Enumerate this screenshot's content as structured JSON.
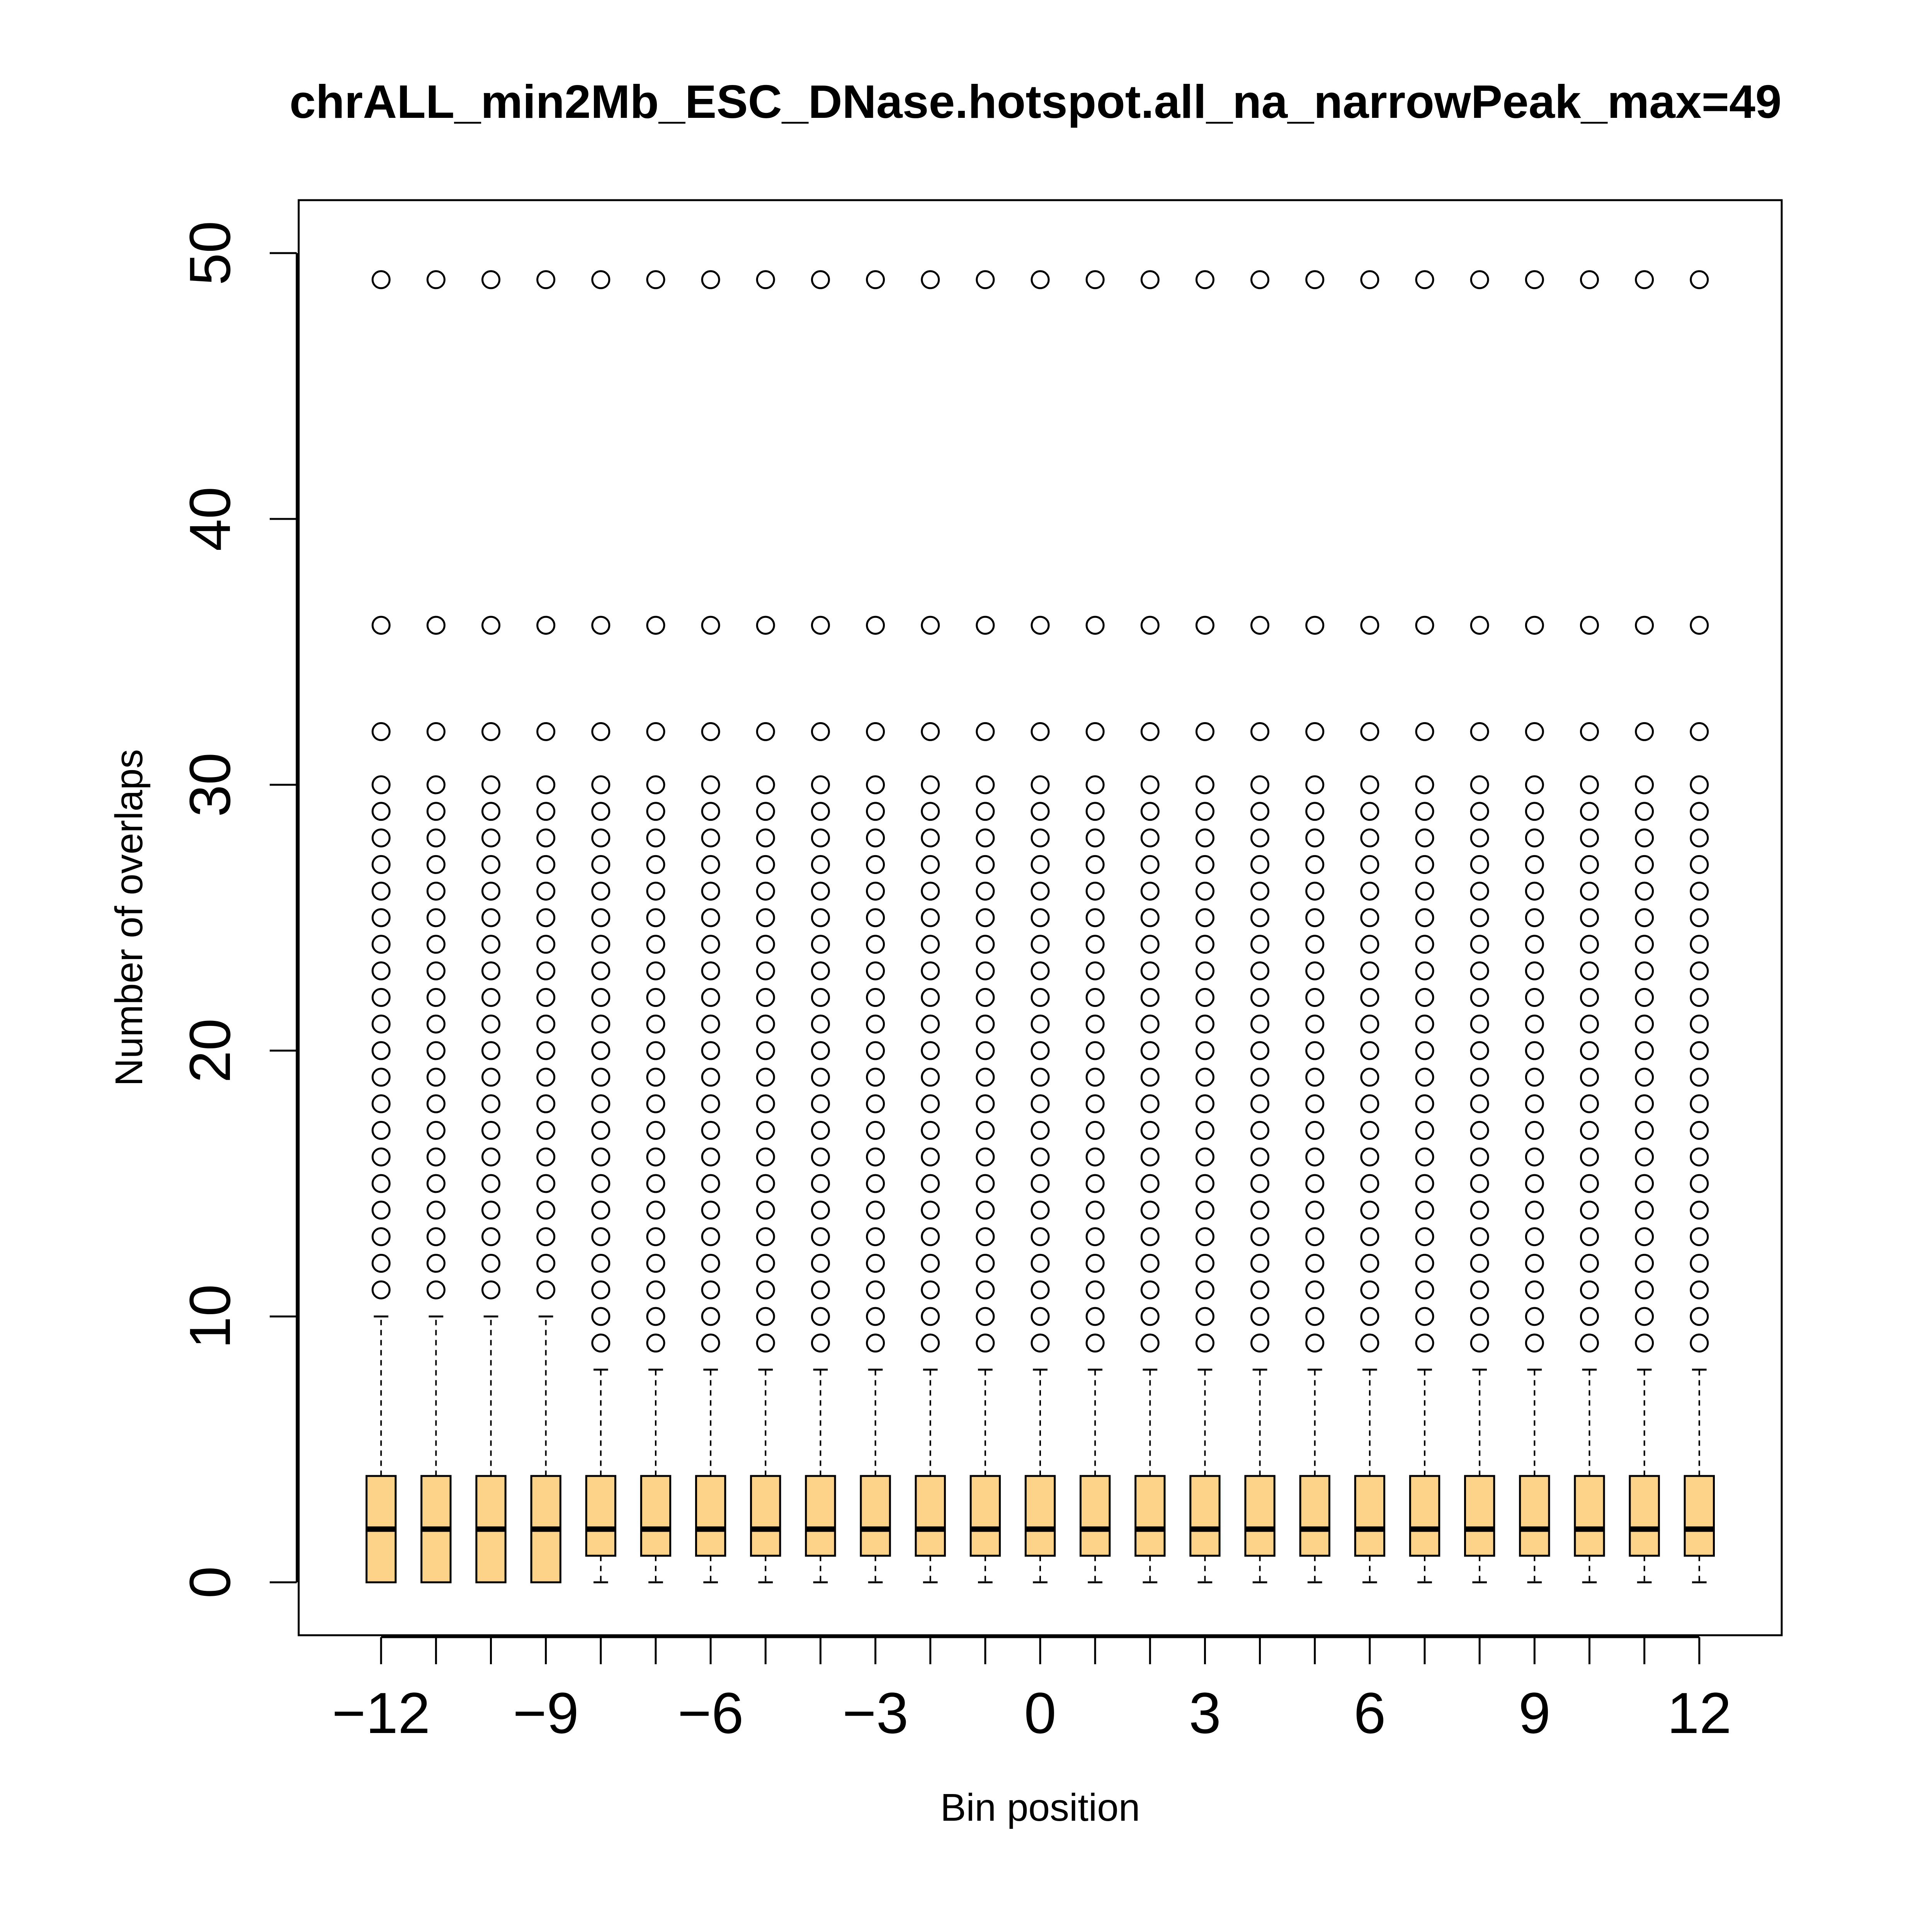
{
  "chart_data": {
    "type": "boxplot",
    "title": "chrALL_min2Mb_ESC_DNase.hotspot.all_na_narrowPeak_max=49",
    "xlabel": "Bin position",
    "ylabel": "Number of overlaps",
    "ylim": [
      0,
      50
    ],
    "y_ticks": [
      "0",
      "10",
      "20",
      "30",
      "40",
      "50"
    ],
    "x_ticks": [
      "−12",
      "−9",
      "−6",
      "−3",
      "0",
      "3",
      "6",
      "9",
      "12"
    ],
    "x_tick_positions": [
      -12,
      -9,
      -6,
      -3,
      0,
      3,
      6,
      9,
      12
    ],
    "x_range": [
      -13.5,
      13.5
    ],
    "box_fill": "#FDD38A",
    "positions": [
      -12,
      -11,
      -10,
      -9,
      -8,
      -7,
      -6,
      -5,
      -4,
      -3,
      -2,
      -1,
      0,
      1,
      2,
      3,
      4,
      5,
      6,
      7,
      8,
      9,
      10,
      11,
      12
    ],
    "groups": [
      {
        "min": 0,
        "q1": 0,
        "median": 2,
        "q3": 4,
        "max": 10,
        "outliers": [
          11,
          12,
          13,
          14,
          15,
          16,
          17,
          18,
          19,
          20,
          21,
          22,
          23,
          24,
          25,
          26,
          27,
          28,
          29,
          30,
          32,
          36,
          49
        ]
      },
      {
        "min": 0,
        "q1": 0,
        "median": 2,
        "q3": 4,
        "max": 10,
        "outliers": [
          11,
          12,
          13,
          14,
          15,
          16,
          17,
          18,
          19,
          20,
          21,
          22,
          23,
          24,
          25,
          26,
          27,
          28,
          29,
          30,
          32,
          36,
          49
        ]
      },
      {
        "min": 0,
        "q1": 0,
        "median": 2,
        "q3": 4,
        "max": 10,
        "outliers": [
          11,
          12,
          13,
          14,
          15,
          16,
          17,
          18,
          19,
          20,
          21,
          22,
          23,
          24,
          25,
          26,
          27,
          28,
          29,
          30,
          32,
          36,
          49
        ]
      },
      {
        "min": 0,
        "q1": 0,
        "median": 2,
        "q3": 4,
        "max": 10,
        "outliers": [
          11,
          12,
          13,
          14,
          15,
          16,
          17,
          18,
          19,
          20,
          21,
          22,
          23,
          24,
          25,
          26,
          27,
          28,
          29,
          30,
          32,
          36,
          49
        ]
      },
      {
        "min": 0,
        "q1": 1,
        "median": 2,
        "q3": 4,
        "max": 8,
        "outliers": [
          9,
          10,
          11,
          12,
          13,
          14,
          15,
          16,
          17,
          18,
          19,
          20,
          21,
          22,
          23,
          24,
          25,
          26,
          27,
          28,
          29,
          30,
          32,
          36,
          49
        ]
      },
      {
        "min": 0,
        "q1": 1,
        "median": 2,
        "q3": 4,
        "max": 8,
        "outliers": [
          9,
          10,
          11,
          12,
          13,
          14,
          15,
          16,
          17,
          18,
          19,
          20,
          21,
          22,
          23,
          24,
          25,
          26,
          27,
          28,
          29,
          30,
          32,
          36,
          49
        ]
      },
      {
        "min": 0,
        "q1": 1,
        "median": 2,
        "q3": 4,
        "max": 8,
        "outliers": [
          9,
          10,
          11,
          12,
          13,
          14,
          15,
          16,
          17,
          18,
          19,
          20,
          21,
          22,
          23,
          24,
          25,
          26,
          27,
          28,
          29,
          30,
          32,
          36,
          49
        ]
      },
      {
        "min": 0,
        "q1": 1,
        "median": 2,
        "q3": 4,
        "max": 8,
        "outliers": [
          9,
          10,
          11,
          12,
          13,
          14,
          15,
          16,
          17,
          18,
          19,
          20,
          21,
          22,
          23,
          24,
          25,
          26,
          27,
          28,
          29,
          30,
          32,
          36,
          49
        ]
      },
      {
        "min": 0,
        "q1": 1,
        "median": 2,
        "q3": 4,
        "max": 8,
        "outliers": [
          9,
          10,
          11,
          12,
          13,
          14,
          15,
          16,
          17,
          18,
          19,
          20,
          21,
          22,
          23,
          24,
          25,
          26,
          27,
          28,
          29,
          30,
          32,
          36,
          49
        ]
      },
      {
        "min": 0,
        "q1": 1,
        "median": 2,
        "q3": 4,
        "max": 8,
        "outliers": [
          9,
          10,
          11,
          12,
          13,
          14,
          15,
          16,
          17,
          18,
          19,
          20,
          21,
          22,
          23,
          24,
          25,
          26,
          27,
          28,
          29,
          30,
          32,
          36,
          49
        ]
      },
      {
        "min": 0,
        "q1": 1,
        "median": 2,
        "q3": 4,
        "max": 8,
        "outliers": [
          9,
          10,
          11,
          12,
          13,
          14,
          15,
          16,
          17,
          18,
          19,
          20,
          21,
          22,
          23,
          24,
          25,
          26,
          27,
          28,
          29,
          30,
          32,
          36,
          49
        ]
      },
      {
        "min": 0,
        "q1": 1,
        "median": 2,
        "q3": 4,
        "max": 8,
        "outliers": [
          9,
          10,
          11,
          12,
          13,
          14,
          15,
          16,
          17,
          18,
          19,
          20,
          21,
          22,
          23,
          24,
          25,
          26,
          27,
          28,
          29,
          30,
          32,
          36,
          49
        ]
      },
      {
        "min": 0,
        "q1": 1,
        "median": 2,
        "q3": 4,
        "max": 8,
        "outliers": [
          9,
          10,
          11,
          12,
          13,
          14,
          15,
          16,
          17,
          18,
          19,
          20,
          21,
          22,
          23,
          24,
          25,
          26,
          27,
          28,
          29,
          30,
          32,
          36,
          49
        ]
      },
      {
        "min": 0,
        "q1": 1,
        "median": 2,
        "q3": 4,
        "max": 8,
        "outliers": [
          9,
          10,
          11,
          12,
          13,
          14,
          15,
          16,
          17,
          18,
          19,
          20,
          21,
          22,
          23,
          24,
          25,
          26,
          27,
          28,
          29,
          30,
          32,
          36,
          49
        ]
      },
      {
        "min": 0,
        "q1": 1,
        "median": 2,
        "q3": 4,
        "max": 8,
        "outliers": [
          9,
          10,
          11,
          12,
          13,
          14,
          15,
          16,
          17,
          18,
          19,
          20,
          21,
          22,
          23,
          24,
          25,
          26,
          27,
          28,
          29,
          30,
          32,
          36,
          49
        ]
      },
      {
        "min": 0,
        "q1": 1,
        "median": 2,
        "q3": 4,
        "max": 8,
        "outliers": [
          9,
          10,
          11,
          12,
          13,
          14,
          15,
          16,
          17,
          18,
          19,
          20,
          21,
          22,
          23,
          24,
          25,
          26,
          27,
          28,
          29,
          30,
          32,
          36,
          49
        ]
      },
      {
        "min": 0,
        "q1": 1,
        "median": 2,
        "q3": 4,
        "max": 8,
        "outliers": [
          9,
          10,
          11,
          12,
          13,
          14,
          15,
          16,
          17,
          18,
          19,
          20,
          21,
          22,
          23,
          24,
          25,
          26,
          27,
          28,
          29,
          30,
          32,
          36,
          49
        ]
      },
      {
        "min": 0,
        "q1": 1,
        "median": 2,
        "q3": 4,
        "max": 8,
        "outliers": [
          9,
          10,
          11,
          12,
          13,
          14,
          15,
          16,
          17,
          18,
          19,
          20,
          21,
          22,
          23,
          24,
          25,
          26,
          27,
          28,
          29,
          30,
          32,
          36,
          49
        ]
      },
      {
        "min": 0,
        "q1": 1,
        "median": 2,
        "q3": 4,
        "max": 8,
        "outliers": [
          9,
          10,
          11,
          12,
          13,
          14,
          15,
          16,
          17,
          18,
          19,
          20,
          21,
          22,
          23,
          24,
          25,
          26,
          27,
          28,
          29,
          30,
          32,
          36,
          49
        ]
      },
      {
        "min": 0,
        "q1": 1,
        "median": 2,
        "q3": 4,
        "max": 8,
        "outliers": [
          9,
          10,
          11,
          12,
          13,
          14,
          15,
          16,
          17,
          18,
          19,
          20,
          21,
          22,
          23,
          24,
          25,
          26,
          27,
          28,
          29,
          30,
          32,
          36,
          49
        ]
      },
      {
        "min": 0,
        "q1": 1,
        "median": 2,
        "q3": 4,
        "max": 8,
        "outliers": [
          9,
          10,
          11,
          12,
          13,
          14,
          15,
          16,
          17,
          18,
          19,
          20,
          21,
          22,
          23,
          24,
          25,
          26,
          27,
          28,
          29,
          30,
          32,
          36,
          49
        ]
      },
      {
        "min": 0,
        "q1": 1,
        "median": 2,
        "q3": 4,
        "max": 8,
        "outliers": [
          9,
          10,
          11,
          12,
          13,
          14,
          15,
          16,
          17,
          18,
          19,
          20,
          21,
          22,
          23,
          24,
          25,
          26,
          27,
          28,
          29,
          30,
          32,
          36,
          49
        ]
      },
      {
        "min": 0,
        "q1": 1,
        "median": 2,
        "q3": 4,
        "max": 8,
        "outliers": [
          9,
          10,
          11,
          12,
          13,
          14,
          15,
          16,
          17,
          18,
          19,
          20,
          21,
          22,
          23,
          24,
          25,
          26,
          27,
          28,
          29,
          30,
          32,
          36,
          49
        ]
      },
      {
        "min": 0,
        "q1": 1,
        "median": 2,
        "q3": 4,
        "max": 8,
        "outliers": [
          9,
          10,
          11,
          12,
          13,
          14,
          15,
          16,
          17,
          18,
          19,
          20,
          21,
          22,
          23,
          24,
          25,
          26,
          27,
          28,
          29,
          30,
          32,
          36,
          49
        ]
      },
      {
        "min": 0,
        "q1": 1,
        "median": 2,
        "q3": 4,
        "max": 8,
        "outliers": [
          9,
          10,
          11,
          12,
          13,
          14,
          15,
          16,
          17,
          18,
          19,
          20,
          21,
          22,
          23,
          24,
          25,
          26,
          27,
          28,
          29,
          30,
          32,
          36,
          49
        ]
      }
    ]
  }
}
